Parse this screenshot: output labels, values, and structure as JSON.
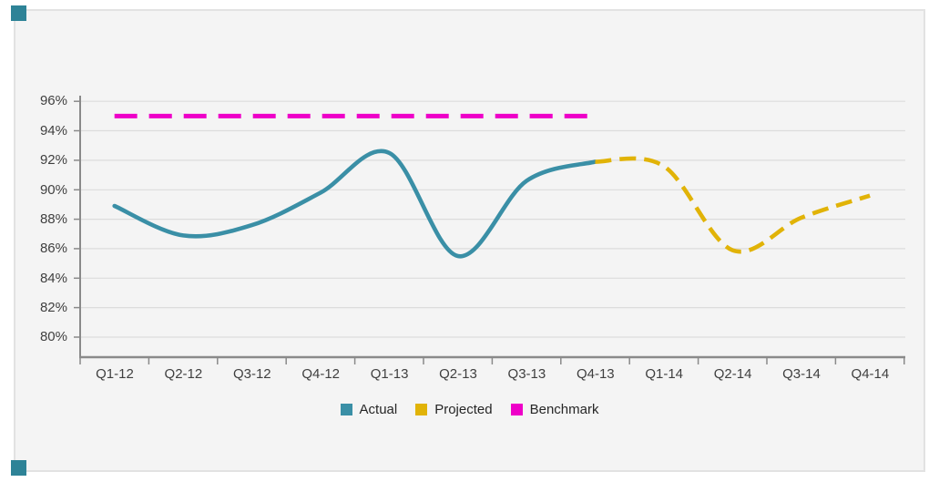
{
  "chart_data": {
    "type": "line",
    "title": "",
    "xlabel": "",
    "ylabel": "",
    "categories": [
      "Q1-12",
      "Q2-12",
      "Q3-12",
      "Q4-12",
      "Q1-13",
      "Q2-13",
      "Q3-13",
      "Q4-13",
      "Q1-14",
      "Q2-14",
      "Q3-14",
      "Q4-14"
    ],
    "series": [
      {
        "name": "Actual",
        "color": "#3a8fa6",
        "line_style": "solid",
        "values": [
          88.9,
          86.9,
          87.6,
          89.8,
          92.5,
          85.5,
          90.6,
          91.9,
          null,
          null,
          null,
          null
        ]
      },
      {
        "name": "Projected",
        "color": "#e1b307",
        "line_style": "dashed",
        "values": [
          null,
          null,
          null,
          null,
          null,
          null,
          null,
          91.9,
          91.6,
          85.9,
          88.1,
          89.6
        ]
      },
      {
        "name": "Benchmark",
        "color": "#ee00c8",
        "line_style": "long-dashed",
        "values": [
          95,
          95,
          95,
          95,
          95,
          95,
          95,
          95,
          null,
          null,
          null,
          null
        ]
      }
    ],
    "ylim": [
      80,
      96
    ],
    "ytick_step": 2,
    "y_tick_labels": [
      "96%",
      "94%",
      "92%",
      "90%",
      "88%",
      "86%",
      "84%",
      "82%",
      "80%"
    ],
    "grid": "horizontal",
    "legend_position": "bottom"
  },
  "accents": {
    "corner_marker_color": "#2e8397",
    "panel_background": "#f4f4f4",
    "gridline_color": "#dcdcdc",
    "axis_color": "#8a8a8a"
  }
}
